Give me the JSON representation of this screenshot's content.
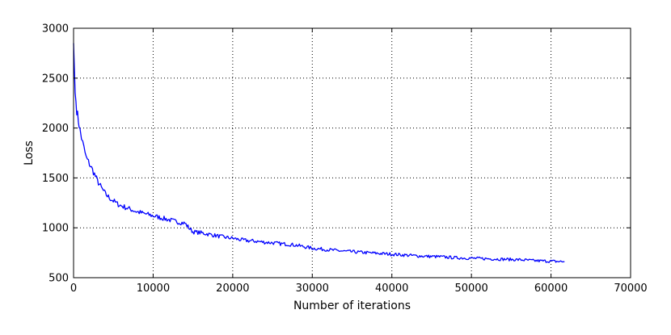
{
  "chart_data": {
    "type": "line",
    "title": "",
    "xlabel": "Number of iterations",
    "ylabel": "Loss",
    "xlim": [
      0,
      70000
    ],
    "ylim": [
      500,
      3000
    ],
    "xticks": [
      0,
      10000,
      20000,
      30000,
      40000,
      50000,
      60000,
      70000
    ],
    "yticks": [
      500,
      1000,
      1500,
      2000,
      2500,
      3000
    ],
    "grid": true,
    "legend": false,
    "colors": {
      "series": "#0000ff",
      "grid": "#000000",
      "axes": "#000000"
    },
    "series": [
      {
        "color": "#0000ff",
        "x": [
          0,
          100,
          200,
          400,
          600,
          800,
          1000,
          1300,
          1600,
          2000,
          2500,
          3000,
          3500,
          4000,
          4500,
          5000,
          5500,
          6000,
          7000,
          8000,
          9000,
          10000,
          11000,
          12000,
          13000,
          14000,
          14500,
          15000,
          16000,
          17000,
          18000,
          19000,
          20000,
          21000,
          22000,
          23000,
          24000,
          25000,
          26000,
          27000,
          28000,
          29000,
          30000,
          32000,
          34000,
          36000,
          38000,
          40000,
          42000,
          44000,
          46000,
          48000,
          50000,
          52000,
          54000,
          56000,
          58000,
          60000,
          61700
        ],
        "y": [
          2850,
          2600,
          2350,
          2180,
          2080,
          1980,
          1900,
          1800,
          1700,
          1640,
          1560,
          1470,
          1400,
          1340,
          1300,
          1270,
          1240,
          1220,
          1190,
          1160,
          1140,
          1120,
          1100,
          1080,
          1060,
          1045,
          1000,
          960,
          950,
          935,
          920,
          905,
          895,
          880,
          870,
          865,
          855,
          850,
          840,
          835,
          825,
          810,
          795,
          780,
          765,
          755,
          745,
          735,
          725,
          715,
          710,
          700,
          695,
          690,
          685,
          680,
          670,
          665,
          660
        ]
      }
    ]
  }
}
